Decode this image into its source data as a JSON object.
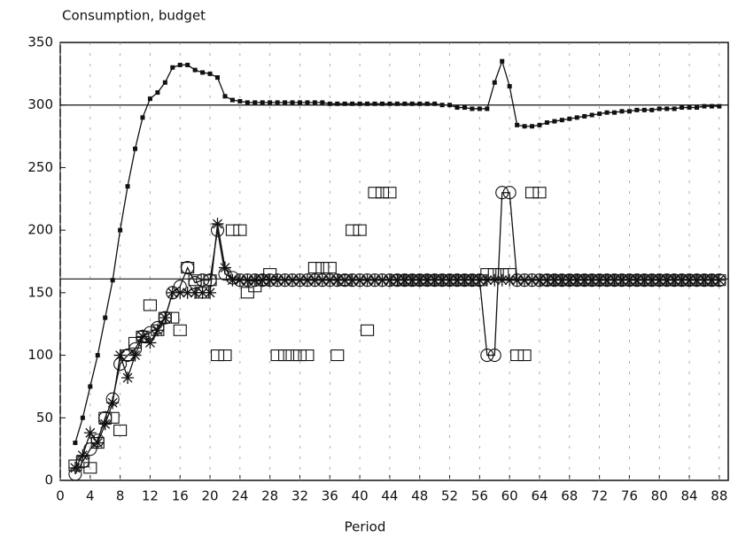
{
  "chart_data": {
    "type": "line",
    "title": "Consumption, budget",
    "x_label": "Period",
    "xlim": [
      0,
      89.2
    ],
    "ylim": [
      0,
      350
    ],
    "xticks": [
      0,
      4,
      8,
      12,
      16,
      20,
      24,
      28,
      32,
      36,
      40,
      44,
      48,
      52,
      56,
      60,
      64,
      68,
      72,
      76,
      80,
      84,
      88
    ],
    "yticks": [
      0,
      50,
      100,
      150,
      200,
      250,
      300,
      350
    ],
    "grid": "x",
    "hlines": [
      300,
      161
    ],
    "x": [
      2,
      3,
      4,
      5,
      6,
      7,
      8,
      9,
      10,
      11,
      12,
      13,
      14,
      15,
      16,
      17,
      18,
      19,
      20,
      21,
      22,
      23,
      24,
      25,
      26,
      27,
      28,
      29,
      30,
      31,
      32,
      33,
      34,
      35,
      36,
      37,
      38,
      39,
      40,
      41,
      42,
      43,
      44,
      45,
      46,
      47,
      48,
      49,
      50,
      51,
      52,
      53,
      54,
      55,
      56,
      57,
      58,
      59,
      60,
      61,
      62,
      63,
      64,
      65,
      66,
      67,
      68,
      69,
      70,
      71,
      72,
      73,
      74,
      75,
      76,
      77,
      78,
      79,
      80,
      81,
      82,
      83,
      84,
      85,
      86,
      87,
      88
    ],
    "series": [
      {
        "color": "#111",
        "marker": "dot-square",
        "line": true,
        "values": [
          30,
          50,
          75,
          100,
          130,
          160,
          200,
          235,
          265,
          290,
          305,
          310,
          318,
          330,
          332,
          332,
          328,
          326,
          325,
          322,
          307,
          304,
          303,
          302,
          302,
          302,
          302,
          302,
          302,
          302,
          302,
          302,
          302,
          302,
          301,
          301,
          301,
          301,
          301,
          301,
          301,
          301,
          301,
          301,
          301,
          301,
          301,
          301,
          301,
          300,
          300,
          298,
          298,
          297,
          297,
          297,
          318,
          335,
          315,
          284,
          283,
          283,
          284,
          286,
          287,
          288,
          289,
          290,
          291,
          292,
          293,
          294,
          294,
          295,
          295,
          296,
          296,
          296,
          297,
          297,
          297,
          298,
          298,
          298,
          299,
          299,
          299
        ]
      },
      {
        "color": "#111",
        "marker": "circle",
        "line": true,
        "values": [
          5,
          15,
          25,
          32,
          50,
          65,
          93,
          100,
          105,
          115,
          118,
          122,
          130,
          150,
          155,
          170,
          158,
          160,
          160,
          200,
          165,
          162,
          160,
          160,
          160,
          160,
          160,
          160,
          160,
          160,
          160,
          160,
          160,
          160,
          160,
          160,
          160,
          160,
          160,
          160,
          160,
          160,
          160,
          160,
          160,
          160,
          160,
          160,
          160,
          160,
          160,
          160,
          160,
          160,
          160,
          100,
          100,
          230,
          230,
          160,
          160,
          160,
          160,
          160,
          160,
          160,
          160,
          160,
          160,
          160,
          160,
          160,
          160,
          160,
          160,
          160,
          160,
          160,
          160,
          160,
          160,
          160,
          160,
          160,
          160,
          160,
          160
        ]
      },
      {
        "color": "#111",
        "marker": "asterisk",
        "line": true,
        "values": [
          10,
          20,
          38,
          30,
          45,
          62,
          100,
          82,
          100,
          115,
          110,
          120,
          130,
          150,
          150,
          150,
          150,
          150,
          150,
          205,
          170,
          160,
          160,
          160,
          160,
          160,
          160,
          160,
          160,
          160,
          160,
          160,
          160,
          160,
          160,
          160,
          160,
          160,
          160,
          160,
          160,
          160,
          160,
          160,
          160,
          160,
          160,
          160,
          160,
          160,
          160,
          160,
          160,
          160,
          160,
          160,
          160,
          160,
          160,
          160,
          160,
          160,
          160,
          160,
          160,
          160,
          160,
          160,
          160,
          160,
          160,
          160,
          160,
          160,
          160,
          160,
          160,
          160,
          160,
          160,
          160,
          160,
          160,
          160,
          160,
          160,
          160
        ]
      },
      {
        "color": "#111",
        "marker": "open-square",
        "line": false,
        "values": [
          12,
          15,
          10,
          30,
          50,
          50,
          40,
          100,
          110,
          115,
          140,
          120,
          130,
          130,
          120,
          170,
          160,
          150,
          160,
          100,
          100,
          200,
          200,
          150,
          155,
          160,
          165,
          100,
          100,
          100,
          100,
          100,
          170,
          170,
          170,
          100,
          160,
          200,
          200,
          120,
          230,
          230,
          230,
          160,
          160,
          160,
          160,
          160,
          160,
          160,
          160,
          160,
          160,
          160,
          160,
          165,
          165,
          165,
          165,
          100,
          100,
          230,
          230,
          160,
          160,
          160,
          160,
          160,
          160,
          160,
          160,
          160,
          160,
          160,
          160,
          160,
          160,
          160,
          160,
          160,
          160,
          160,
          160,
          160,
          160,
          160,
          160
        ]
      }
    ]
  }
}
